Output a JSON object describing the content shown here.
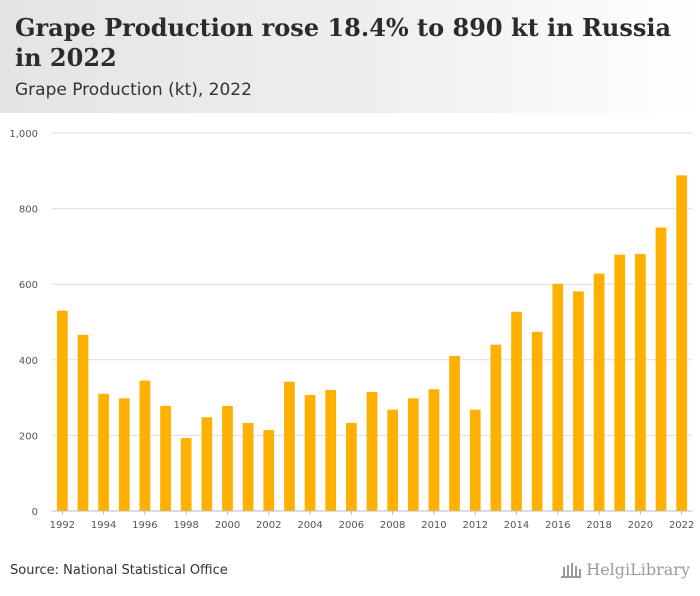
{
  "header": {
    "title": "Grape Production rose 18.4% to 890 kt in Russia in 2022",
    "subtitle": "Grape Production (kt), 2022"
  },
  "footer": {
    "source": "Source: National Statistical Office",
    "logo_text": "HelgiLibrary"
  },
  "colors": {
    "bar": "#FFB000",
    "grid": "#dddddd",
    "axis_text": "#555555"
  },
  "chart_data": {
    "type": "bar",
    "categories": [
      "1992",
      "1993",
      "1994",
      "1995",
      "1996",
      "1997",
      "1998",
      "1999",
      "2000",
      "2001",
      "2002",
      "2003",
      "2004",
      "2005",
      "2006",
      "2007",
      "2008",
      "2009",
      "2010",
      "2011",
      "2012",
      "2013",
      "2014",
      "2015",
      "2016",
      "2017",
      "2018",
      "2019",
      "2020",
      "2021",
      "2022"
    ],
    "x_tick_labels": [
      "1992",
      "1994",
      "1996",
      "1998",
      "2000",
      "2002",
      "2004",
      "2006",
      "2008",
      "2010",
      "2012",
      "2014",
      "2016",
      "2018",
      "2020",
      "2022"
    ],
    "values": [
      530,
      466,
      310,
      298,
      345,
      278,
      193,
      248,
      278,
      233,
      214,
      342,
      307,
      320,
      233,
      315,
      268,
      298,
      322,
      410,
      268,
      440,
      527,
      474,
      601,
      581,
      628,
      678,
      680,
      750,
      888
    ],
    "ylim": [
      0,
      1000
    ],
    "y_ticks": [
      0,
      200,
      400,
      600,
      800,
      1000
    ],
    "y_tick_labels": [
      "0",
      "200",
      "400",
      "600",
      "800",
      "1,000"
    ],
    "grid": true,
    "legend": "none"
  }
}
